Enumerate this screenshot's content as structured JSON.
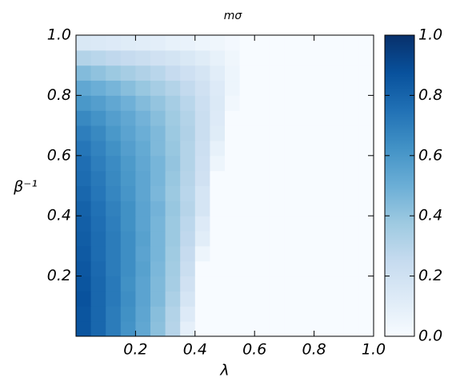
{
  "chart_data": {
    "type": "heatmap",
    "title": "mσ",
    "x_label": "λ",
    "y_label": "β⁻¹",
    "colormap": "Blues",
    "xlim": [
      0,
      1
    ],
    "ylim": [
      0,
      1
    ],
    "clim": [
      0,
      1
    ],
    "xticks": [
      0.2,
      0.4,
      0.6,
      0.8,
      {
        "value": 1.0,
        "label": "1.0"
      }
    ],
    "yticks": [
      0.2,
      0.4,
      0.6,
      0.8,
      {
        "value": 1.0,
        "label": "1.0"
      }
    ],
    "cticks": [
      {
        "value": 0,
        "label": "0.0"
      },
      0.2,
      0.4,
      0.6,
      0.8,
      {
        "value": 1,
        "label": "1.0"
      }
    ],
    "x": [
      0.025,
      0.075,
      0.125,
      0.175,
      0.225,
      0.275,
      0.325,
      0.375,
      0.425,
      0.475,
      0.525,
      0.575,
      0.625,
      0.675,
      0.725,
      0.775,
      0.825,
      0.875,
      0.925,
      0.975
    ],
    "y": [
      0.025,
      0.075,
      0.125,
      0.175,
      0.225,
      0.275,
      0.325,
      0.375,
      0.425,
      0.475,
      0.525,
      0.575,
      0.625,
      0.675,
      0.725,
      0.775,
      0.825,
      0.875,
      0.925,
      0.975
    ],
    "z": [
      [
        0.86,
        0.79,
        0.71,
        0.62,
        0.53,
        0.42,
        0.3,
        0.09,
        0,
        0,
        0,
        0,
        0,
        0,
        0,
        0,
        0,
        0,
        0,
        0
      ],
      [
        0.86,
        0.79,
        0.71,
        0.63,
        0.54,
        0.43,
        0.31,
        0.13,
        0,
        0,
        0,
        0,
        0,
        0,
        0,
        0,
        0,
        0,
        0,
        0
      ],
      [
        0.87,
        0.79,
        0.72,
        0.64,
        0.55,
        0.45,
        0.33,
        0.17,
        0,
        0,
        0,
        0,
        0,
        0,
        0,
        0,
        0,
        0,
        0,
        0
      ],
      [
        0.86,
        0.79,
        0.72,
        0.63,
        0.55,
        0.45,
        0.35,
        0.2,
        0,
        0,
        0,
        0,
        0,
        0,
        0,
        0,
        0,
        0,
        0,
        0
      ],
      [
        0.85,
        0.78,
        0.71,
        0.64,
        0.56,
        0.46,
        0.36,
        0.23,
        0,
        0,
        0,
        0,
        0,
        0,
        0,
        0,
        0,
        0,
        0,
        0
      ],
      [
        0.84,
        0.77,
        0.71,
        0.64,
        0.55,
        0.47,
        0.37,
        0.25,
        0.05,
        0,
        0,
        0,
        0,
        0,
        0,
        0,
        0,
        0,
        0,
        0
      ],
      [
        0.83,
        0.77,
        0.71,
        0.64,
        0.56,
        0.47,
        0.38,
        0.27,
        0.11,
        0,
        0,
        0,
        0,
        0,
        0,
        0,
        0,
        0,
        0,
        0
      ],
      [
        0.82,
        0.76,
        0.7,
        0.63,
        0.55,
        0.47,
        0.38,
        0.28,
        0.13,
        0,
        0,
        0,
        0,
        0,
        0,
        0,
        0,
        0,
        0,
        0
      ],
      [
        0.81,
        0.75,
        0.69,
        0.63,
        0.55,
        0.48,
        0.39,
        0.3,
        0.17,
        0,
        0,
        0,
        0,
        0,
        0,
        0,
        0,
        0,
        0,
        0
      ],
      [
        0.79,
        0.73,
        0.67,
        0.61,
        0.54,
        0.46,
        0.38,
        0.29,
        0.17,
        0,
        0,
        0,
        0,
        0,
        0,
        0,
        0,
        0,
        0,
        0
      ],
      [
        0.77,
        0.72,
        0.66,
        0.6,
        0.54,
        0.47,
        0.39,
        0.3,
        0.2,
        0,
        0,
        0,
        0,
        0,
        0,
        0,
        0,
        0,
        0,
        0
      ],
      [
        0.76,
        0.7,
        0.65,
        0.59,
        0.53,
        0.47,
        0.4,
        0.31,
        0.21,
        0.05,
        0,
        0,
        0,
        0,
        0,
        0,
        0,
        0,
        0,
        0
      ],
      [
        0.73,
        0.68,
        0.63,
        0.57,
        0.52,
        0.45,
        0.39,
        0.31,
        0.22,
        0.08,
        0,
        0,
        0,
        0,
        0,
        0,
        0,
        0,
        0,
        0
      ],
      [
        0.7,
        0.66,
        0.6,
        0.55,
        0.5,
        0.45,
        0.38,
        0.32,
        0.23,
        0.12,
        0,
        0,
        0,
        0,
        0,
        0,
        0,
        0,
        0,
        0
      ],
      [
        0.66,
        0.62,
        0.57,
        0.53,
        0.48,
        0.43,
        0.37,
        0.31,
        0.23,
        0.13,
        0,
        0,
        0,
        0,
        0,
        0,
        0,
        0,
        0,
        0
      ],
      [
        0.6,
        0.57,
        0.53,
        0.49,
        0.44,
        0.4,
        0.35,
        0.29,
        0.22,
        0.14,
        0.03,
        0,
        0,
        0,
        0,
        0,
        0,
        0,
        0,
        0
      ],
      [
        0.53,
        0.5,
        0.47,
        0.43,
        0.39,
        0.35,
        0.31,
        0.26,
        0.2,
        0.13,
        0.05,
        0,
        0,
        0,
        0,
        0,
        0,
        0,
        0,
        0
      ],
      [
        0.44,
        0.41,
        0.38,
        0.35,
        0.32,
        0.29,
        0.25,
        0.21,
        0.17,
        0.11,
        0.05,
        0,
        0,
        0,
        0,
        0,
        0,
        0,
        0,
        0
      ],
      [
        0.31,
        0.29,
        0.27,
        0.25,
        0.23,
        0.2,
        0.18,
        0.15,
        0.12,
        0.08,
        0.04,
        0,
        0,
        0,
        0,
        0,
        0,
        0,
        0,
        0
      ],
      [
        0.15,
        0.14,
        0.13,
        0.12,
        0.11,
        0.1,
        0.08,
        0.07,
        0.05,
        0.04,
        0.02,
        0,
        0,
        0,
        0,
        0,
        0,
        0,
        0,
        0
      ]
    ]
  }
}
